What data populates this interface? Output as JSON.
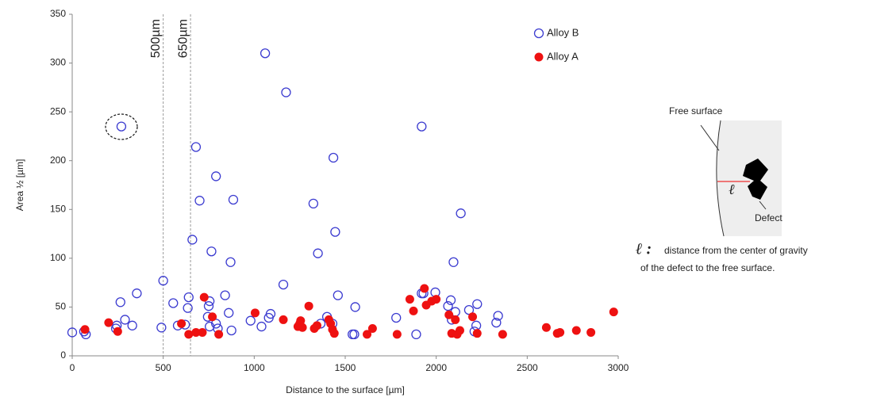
{
  "chart_data": {
    "type": "scatter",
    "x_label": "Distance to the surface [µm]",
    "y_label": "Area ½ [µm]",
    "xlim": [
      0,
      3000
    ],
    "xticks": [
      0,
      500,
      1000,
      1500,
      2000,
      2500,
      3000
    ],
    "ylim": [
      0,
      350
    ],
    "yticks": [
      0,
      50,
      100,
      150,
      200,
      250,
      300,
      350
    ],
    "grid": false,
    "legend": "upper right",
    "reference_lines": [
      {
        "value": 500,
        "label": "500µm"
      },
      {
        "value": 650,
        "label": "650µm"
      }
    ],
    "series": [
      {
        "name": "Alloy B",
        "color": "#3b3bd0",
        "marker": "open",
        "x": [
          0,
          65,
          75,
          240,
          245,
          265,
          270,
          290,
          330,
          355,
          490,
          500,
          555,
          580,
          620,
          635,
          640,
          660,
          680,
          700,
          745,
          750,
          755,
          755,
          765,
          790,
          800,
          790,
          840,
          860,
          870,
          875,
          885,
          980,
          1040,
          1060,
          1080,
          1090,
          1160,
          1175,
          1325,
          1350,
          1365,
          1400,
          1430,
          1435,
          1445,
          1460,
          1540,
          1550,
          1555,
          1780,
          1890,
          1920,
          1930,
          1920,
          1995,
          2065,
          2080,
          2085,
          2095,
          2105,
          2135,
          2180,
          2210,
          2220,
          2225,
          2330,
          2340
        ],
        "values": [
          24,
          25,
          22,
          28,
          31,
          55,
          235,
          37,
          31,
          64,
          29,
          77,
          54,
          31,
          32,
          49,
          60,
          119,
          214,
          159,
          40,
          51,
          56,
          30,
          107,
          33,
          28,
          184,
          62,
          44,
          96,
          26,
          160,
          36,
          30,
          310,
          39,
          43,
          73,
          270,
          156,
          105,
          33,
          40,
          33,
          203,
          127,
          62,
          22,
          22,
          50,
          39,
          22,
          64,
          64,
          235,
          65,
          51,
          57,
          37,
          96,
          45,
          146,
          47,
          25,
          31,
          53,
          34,
          41
        ]
      },
      {
        "name": "Alloy A",
        "color": "#ee1111",
        "marker": "filled",
        "x": [
          70,
          200,
          250,
          600,
          640,
          680,
          715,
          725,
          770,
          805,
          1005,
          1160,
          1240,
          1250,
          1255,
          1265,
          1300,
          1330,
          1345,
          1410,
          1420,
          1430,
          1440,
          1620,
          1650,
          1785,
          1855,
          1875,
          1935,
          1945,
          1975,
          2000,
          2070,
          2085,
          2105,
          2115,
          2130,
          2200,
          2225,
          2365,
          2605,
          2665,
          2680,
          2770,
          2850,
          2975
        ],
        "values": [
          27,
          34,
          25,
          33,
          22,
          24,
          24,
          60,
          40,
          22,
          44,
          37,
          30,
          33,
          36,
          29,
          51,
          28,
          31,
          37,
          33,
          27,
          23,
          22,
          28,
          22,
          58,
          46,
          69,
          52,
          56,
          58,
          42,
          23,
          37,
          22,
          26,
          40,
          23,
          22,
          29,
          23,
          24,
          26,
          24,
          45
        ]
      }
    ]
  },
  "diagram": {
    "free_surface": "Free surface",
    "symbol": "ℓ",
    "defect": "Defect",
    "symbol_colon": "ℓ :",
    "caption_line1": "distance from the center of gravity",
    "caption_line2": "of the defect to the free surface."
  }
}
